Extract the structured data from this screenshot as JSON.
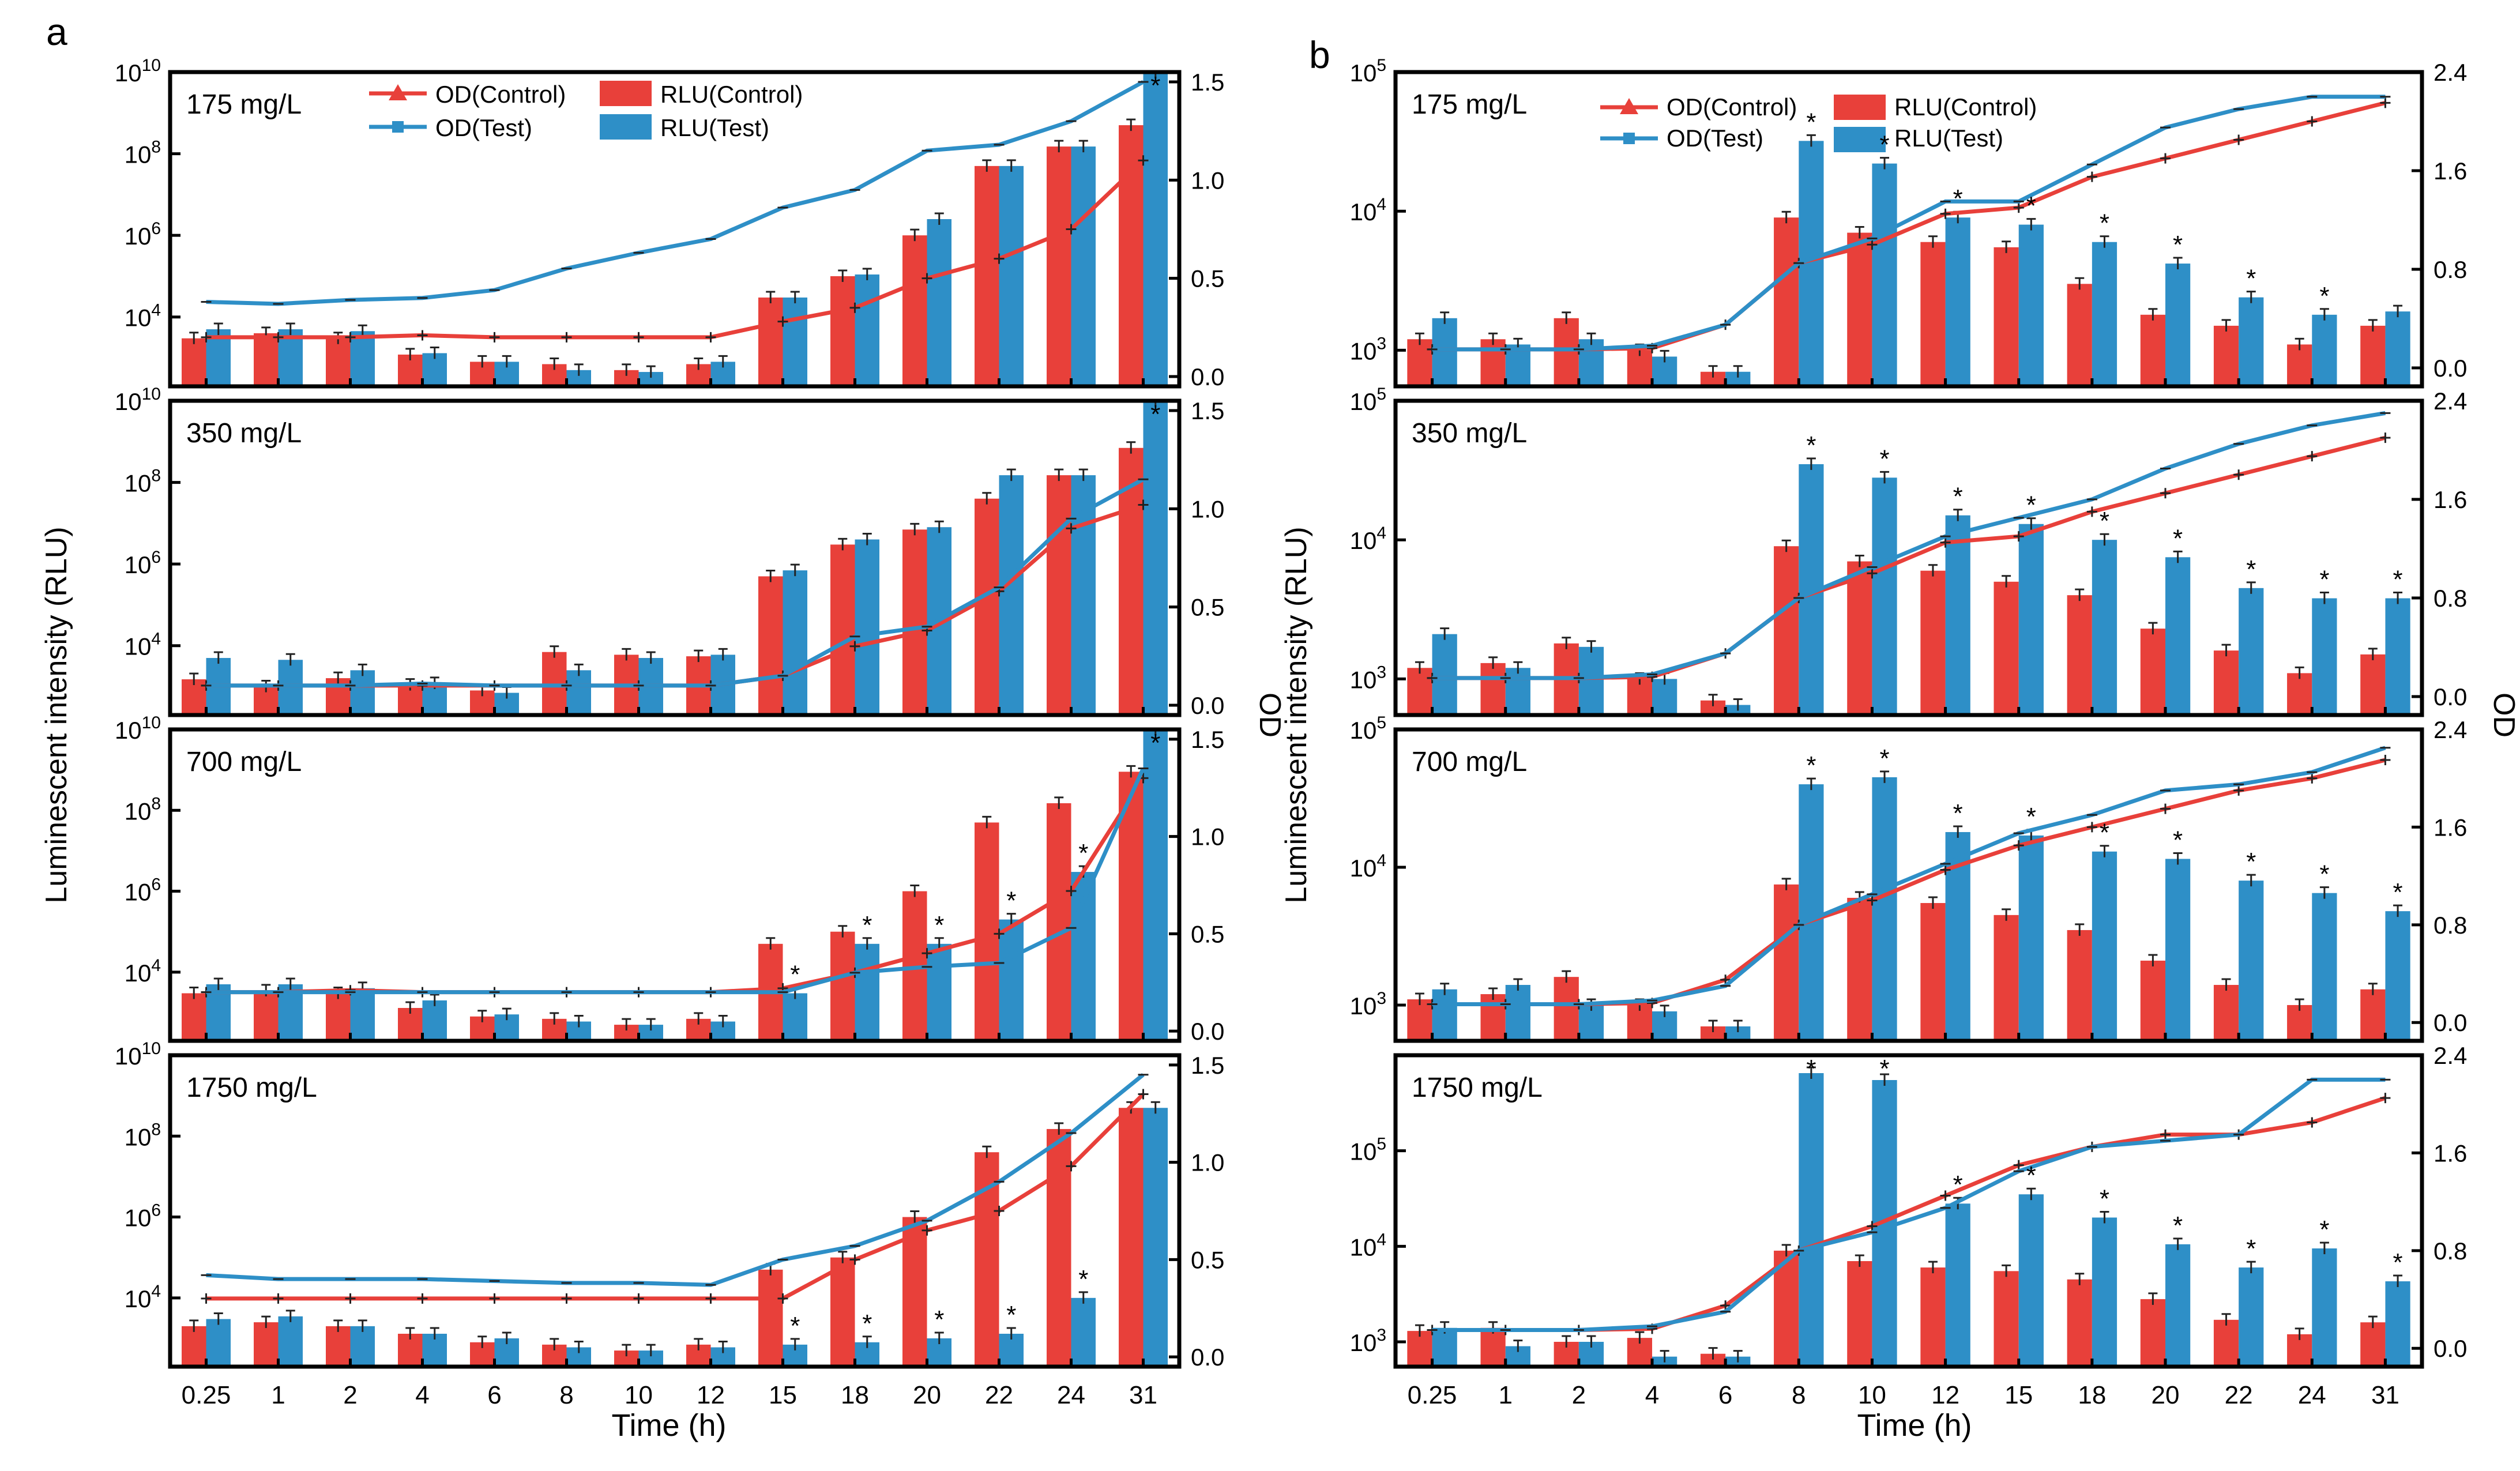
{
  "figure": {
    "panel_labels": [
      "a",
      "b"
    ],
    "x_axis_label": "Time (h)",
    "left_axis_label": "Luminescent intensity (RLU)",
    "right_axis_label": "OD",
    "legend": {
      "od_control": "OD(Control)",
      "od_test": "OD(Test)",
      "rlu_control": "RLU(Control)",
      "rlu_test": "RLU(Test)"
    }
  },
  "colors": {
    "control": "#e8403a",
    "test": "#2e8fc7"
  },
  "chart_data": [
    {
      "type": "bar+line",
      "panel": "a",
      "title": "175 mg/L",
      "categories": [
        "0.25",
        "1",
        "2",
        "4",
        "6",
        "8",
        "10",
        "12",
        "15",
        "18",
        "20",
        "22",
        "24",
        "31"
      ],
      "xlabel": "Time (h)",
      "ylabel": "Luminescent intensity (RLU)",
      "y2label": "OD",
      "rlu_scale": "log",
      "rlu_range": [
        200,
        10000000000
      ],
      "rlu_ticks": [
        10000,
        1000000,
        100000000,
        10000000000
      ],
      "od_range": [
        -0.05,
        1.55
      ],
      "od_ticks": [
        0.0,
        0.5,
        1.0,
        1.5
      ],
      "series": [
        {
          "name": "RLU(Control)",
          "values": [
            3000,
            4000,
            3000,
            1200,
            800,
            700,
            500,
            700,
            30000,
            100000,
            1000000,
            50000000,
            150000000,
            500000000
          ],
          "stars": []
        },
        {
          "name": "RLU(Test)",
          "values": [
            5000,
            5000,
            4500,
            1300,
            800,
            500,
            450,
            800,
            30000,
            110000,
            2500000,
            50000000,
            150000000,
            20000000000
          ],
          "stars": [
            13
          ]
        },
        {
          "name": "OD(Control)",
          "values": [
            0.2,
            0.2,
            0.2,
            0.21,
            0.2,
            0.2,
            0.2,
            0.2,
            0.28,
            0.35,
            0.5,
            0.6,
            0.75,
            1.1
          ],
          "stars": []
        },
        {
          "name": "OD(Test)",
          "values": [
            0.38,
            0.37,
            0.39,
            0.4,
            0.44,
            0.55,
            0.63,
            0.7,
            0.86,
            0.95,
            1.15,
            1.18,
            1.3,
            1.5
          ],
          "stars": []
        }
      ]
    },
    {
      "type": "bar+line",
      "panel": "a",
      "title": "350 mg/L",
      "categories": [
        "0.25",
        "1",
        "2",
        "4",
        "6",
        "8",
        "10",
        "12",
        "15",
        "18",
        "20",
        "22",
        "24",
        "31"
      ],
      "xlabel": "Time (h)",
      "ylabel": "Luminescent intensity (RLU)",
      "y2label": "OD",
      "rlu_scale": "log",
      "rlu_range": [
        200,
        10000000000
      ],
      "rlu_ticks": [
        10000,
        1000000,
        100000000,
        10000000000
      ],
      "od_range": [
        -0.05,
        1.55
      ],
      "od_ticks": [
        0.0,
        0.5,
        1.0,
        1.5
      ],
      "series": [
        {
          "name": "RLU(Control)",
          "values": [
            1500,
            1000,
            1600,
            1100,
            800,
            7000,
            6000,
            5500,
            500000,
            3000000,
            7000000,
            40000000,
            150000000,
            700000000
          ],
          "stars": []
        },
        {
          "name": "RLU(Test)",
          "values": [
            5000,
            4500,
            2500,
            1200,
            700,
            2500,
            5000,
            6000,
            700000,
            4000000,
            8000000,
            150000000,
            150000000,
            20000000000
          ],
          "stars": [
            13
          ]
        },
        {
          "name": "OD(Control)",
          "values": [
            0.1,
            0.1,
            0.1,
            0.1,
            0.1,
            0.1,
            0.1,
            0.1,
            0.15,
            0.3,
            0.38,
            0.58,
            0.9,
            1.02
          ],
          "stars": []
        },
        {
          "name": "OD(Test)",
          "values": [
            0.1,
            0.1,
            0.1,
            0.11,
            0.1,
            0.1,
            0.1,
            0.1,
            0.15,
            0.35,
            0.4,
            0.6,
            0.95,
            1.15
          ],
          "stars": []
        }
      ]
    },
    {
      "type": "bar+line",
      "panel": "a",
      "title": "700 mg/L",
      "categories": [
        "0.25",
        "1",
        "2",
        "4",
        "6",
        "8",
        "10",
        "12",
        "15",
        "18",
        "20",
        "22",
        "24",
        "31"
      ],
      "xlabel": "Time (h)",
      "ylabel": "Luminescent intensity (RLU)",
      "y2label": "OD",
      "rlu_scale": "log",
      "rlu_range": [
        200,
        10000000000
      ],
      "rlu_ticks": [
        10000,
        1000000,
        100000000,
        10000000000
      ],
      "od_range": [
        -0.05,
        1.55
      ],
      "od_ticks": [
        0.0,
        0.5,
        1.0,
        1.5
      ],
      "series": [
        {
          "name": "RLU(Control)",
          "values": [
            3000,
            3500,
            3000,
            1300,
            800,
            700,
            500,
            700,
            50000,
            100000,
            1000000,
            50000000,
            150000000,
            900000000
          ],
          "stars": []
        },
        {
          "name": "RLU(Test)",
          "values": [
            5000,
            5000,
            4000,
            2000,
            900,
            600,
            500,
            600,
            3000,
            50000,
            50000,
            200000,
            3000000,
            20000000000
          ],
          "stars": [
            8,
            9,
            10,
            11,
            12,
            13
          ]
        },
        {
          "name": "OD(Control)",
          "values": [
            0.2,
            0.2,
            0.21,
            0.2,
            0.2,
            0.2,
            0.2,
            0.2,
            0.22,
            0.3,
            0.4,
            0.5,
            0.72,
            1.3
          ],
          "stars": []
        },
        {
          "name": "OD(Test)",
          "values": [
            0.2,
            0.2,
            0.2,
            0.2,
            0.2,
            0.2,
            0.2,
            0.2,
            0.2,
            0.3,
            0.33,
            0.35,
            0.53,
            1.35
          ],
          "stars": []
        }
      ]
    },
    {
      "type": "bar+line",
      "panel": "a",
      "title": "1750 mg/L",
      "categories": [
        "0.25",
        "1",
        "2",
        "4",
        "6",
        "8",
        "10",
        "12",
        "15",
        "18",
        "20",
        "22",
        "24",
        "31"
      ],
      "xlabel": "Time (h)",
      "ylabel": "Luminescent intensity (RLU)",
      "y2label": "OD",
      "rlu_scale": "log",
      "rlu_range": [
        200,
        10000000000
      ],
      "rlu_ticks": [
        10000,
        1000000,
        100000000,
        10000000000
      ],
      "od_range": [
        -0.05,
        1.55
      ],
      "od_ticks": [
        0.0,
        0.5,
        1.0,
        1.5
      ],
      "series": [
        {
          "name": "RLU(Control)",
          "values": [
            2000,
            2500,
            2000,
            1300,
            800,
            700,
            500,
            700,
            50000,
            100000,
            1000000,
            40000000,
            150000000,
            500000000
          ],
          "stars": []
        },
        {
          "name": "RLU(Test)",
          "values": [
            3000,
            3500,
            2000,
            1300,
            1000,
            600,
            500,
            600,
            700,
            800,
            1000,
            1300,
            10000,
            500000000
          ],
          "stars": [
            8,
            9,
            10,
            11,
            12
          ]
        },
        {
          "name": "OD(Control)",
          "values": [
            0.3,
            0.3,
            0.3,
            0.3,
            0.3,
            0.3,
            0.3,
            0.3,
            0.3,
            0.5,
            0.65,
            0.75,
            0.98,
            1.35
          ],
          "stars": []
        },
        {
          "name": "OD(Test)",
          "values": [
            0.42,
            0.4,
            0.4,
            0.4,
            0.39,
            0.38,
            0.38,
            0.37,
            0.5,
            0.57,
            0.7,
            0.9,
            1.15,
            1.45
          ],
          "stars": []
        }
      ]
    },
    {
      "type": "bar+line",
      "panel": "b",
      "title": "175 mg/L",
      "categories": [
        "0.25",
        "1",
        "2",
        "4",
        "6",
        "8",
        "10",
        "12",
        "15",
        "18",
        "20",
        "22",
        "24",
        "31"
      ],
      "xlabel": "Time (h)",
      "ylabel": "Luminescent intensity (RLU)",
      "y2label": "OD",
      "rlu_scale": "log",
      "rlu_range": [
        550,
        100000
      ],
      "rlu_ticks": [
        1000,
        10000,
        100000
      ],
      "od_range": [
        -0.15,
        2.4
      ],
      "od_ticks": [
        0.0,
        0.8,
        1.6,
        2.4
      ],
      "series": [
        {
          "name": "RLU(Control)",
          "values": [
            1200,
            1200,
            1700,
            1000,
            700,
            9000,
            7000,
            6000,
            5500,
            3000,
            1800,
            1500,
            1100,
            1500
          ],
          "stars": []
        },
        {
          "name": "RLU(Test)",
          "values": [
            1700,
            1100,
            1200,
            900,
            700,
            32000,
            22000,
            9000,
            8000,
            6000,
            4200,
            2400,
            1800,
            1900
          ],
          "stars": [
            5,
            6,
            7,
            8,
            9,
            10,
            11,
            12
          ]
        },
        {
          "name": "OD(Control)",
          "values": [
            0.15,
            0.15,
            0.15,
            0.16,
            0.35,
            0.85,
            1.0,
            1.25,
            1.3,
            1.55,
            1.7,
            1.85,
            2.0,
            2.15
          ],
          "stars": []
        },
        {
          "name": "OD(Test)",
          "values": [
            0.15,
            0.15,
            0.15,
            0.18,
            0.35,
            0.85,
            1.05,
            1.35,
            1.35,
            1.65,
            1.95,
            2.1,
            2.2,
            2.2
          ],
          "stars": []
        }
      ]
    },
    {
      "type": "bar+line",
      "panel": "b",
      "title": "350 mg/L",
      "categories": [
        "0.25",
        "1",
        "2",
        "4",
        "6",
        "8",
        "10",
        "12",
        "15",
        "18",
        "20",
        "22",
        "24",
        "31"
      ],
      "xlabel": "Time (h)",
      "ylabel": "Luminescent intensity (RLU)",
      "y2label": "OD",
      "rlu_scale": "log",
      "rlu_range": [
        550,
        100000
      ],
      "rlu_ticks": [
        1000,
        10000,
        100000
      ],
      "od_range": [
        -0.15,
        2.4
      ],
      "od_ticks": [
        0.0,
        0.8,
        1.6,
        2.4
      ],
      "series": [
        {
          "name": "RLU(Control)",
          "values": [
            1200,
            1300,
            1800,
            1000,
            700,
            9000,
            7000,
            6000,
            5000,
            4000,
            2300,
            1600,
            1100,
            1500
          ],
          "stars": []
        },
        {
          "name": "RLU(Test)",
          "values": [
            2100,
            1200,
            1700,
            1000,
            650,
            35000,
            28000,
            15000,
            13000,
            10000,
            7500,
            4500,
            3800,
            3800
          ],
          "stars": [
            5,
            6,
            7,
            8,
            9,
            10,
            11,
            12,
            13
          ]
        },
        {
          "name": "OD(Control)",
          "values": [
            0.15,
            0.15,
            0.15,
            0.16,
            0.35,
            0.8,
            1.0,
            1.25,
            1.3,
            1.5,
            1.65,
            1.8,
            1.95,
            2.1
          ],
          "stars": []
        },
        {
          "name": "OD(Test)",
          "values": [
            0.15,
            0.15,
            0.15,
            0.18,
            0.35,
            0.8,
            1.05,
            1.3,
            1.45,
            1.6,
            1.85,
            2.05,
            2.2,
            2.3
          ],
          "stars": []
        }
      ]
    },
    {
      "type": "bar+line",
      "panel": "b",
      "title": "700 mg/L",
      "categories": [
        "0.25",
        "1",
        "2",
        "4",
        "6",
        "8",
        "10",
        "12",
        "15",
        "18",
        "20",
        "22",
        "24",
        "31"
      ],
      "xlabel": "Time (h)",
      "ylabel": "Luminescent intensity (RLU)",
      "y2label": "OD",
      "rlu_scale": "log",
      "rlu_range": [
        550,
        100000
      ],
      "rlu_ticks": [
        1000,
        10000,
        100000
      ],
      "od_range": [
        -0.15,
        2.4
      ],
      "od_ticks": [
        0.0,
        0.8,
        1.6,
        2.4
      ],
      "series": [
        {
          "name": "RLU(Control)",
          "values": [
            1100,
            1200,
            1600,
            1000,
            700,
            7500,
            6000,
            5500,
            4500,
            3500,
            2100,
            1400,
            1000,
            1300
          ],
          "stars": []
        },
        {
          "name": "RLU(Test)",
          "values": [
            1300,
            1400,
            1000,
            900,
            700,
            40000,
            45000,
            18000,
            17000,
            13000,
            11500,
            8000,
            6500,
            4800
          ],
          "stars": [
            5,
            6,
            7,
            8,
            9,
            10,
            11,
            12,
            13
          ]
        },
        {
          "name": "OD(Control)",
          "values": [
            0.15,
            0.15,
            0.15,
            0.16,
            0.35,
            0.8,
            1.0,
            1.25,
            1.45,
            1.6,
            1.75,
            1.9,
            2.0,
            2.15
          ],
          "stars": []
        },
        {
          "name": "OD(Test)",
          "values": [
            0.15,
            0.15,
            0.15,
            0.18,
            0.3,
            0.8,
            1.05,
            1.3,
            1.55,
            1.7,
            1.9,
            1.95,
            2.05,
            2.25
          ],
          "stars": []
        }
      ]
    },
    {
      "type": "bar+line",
      "panel": "b",
      "title": "1750 mg/L",
      "categories": [
        "0.25",
        "1",
        "2",
        "4",
        "6",
        "8",
        "10",
        "12",
        "15",
        "18",
        "20",
        "22",
        "24",
        "31"
      ],
      "xlabel": "Time (h)",
      "ylabel": "Luminescent intensity (RLU)",
      "y2label": "OD",
      "rlu_scale": "log",
      "rlu_range": [
        550,
        1000000
      ],
      "rlu_ticks": [
        1000,
        10000,
        100000
      ],
      "od_range": [
        -0.15,
        2.4
      ],
      "od_ticks": [
        0.0,
        0.8,
        1.6,
        2.4
      ],
      "series": [
        {
          "name": "RLU(Control)",
          "values": [
            1300,
            1400,
            1000,
            1100,
            750,
            9000,
            7000,
            6000,
            5500,
            4500,
            2800,
            1700,
            1200,
            1600
          ],
          "stars": []
        },
        {
          "name": "RLU(Test)",
          "values": [
            1400,
            900,
            1000,
            700,
            700,
            650000,
            550000,
            28000,
            35000,
            20000,
            10500,
            6000,
            9500,
            4300
          ],
          "stars": [
            5,
            6,
            7,
            8,
            9,
            10,
            11,
            12,
            13
          ]
        },
        {
          "name": "OD(Control)",
          "values": [
            0.15,
            0.15,
            0.15,
            0.16,
            0.35,
            0.8,
            1.0,
            1.25,
            1.5,
            1.65,
            1.75,
            1.75,
            1.85,
            2.05
          ],
          "stars": []
        },
        {
          "name": "OD(Test)",
          "values": [
            0.15,
            0.15,
            0.15,
            0.18,
            0.3,
            0.8,
            0.95,
            1.15,
            1.45,
            1.65,
            1.7,
            1.75,
            2.2,
            2.2
          ],
          "stars": []
        }
      ]
    }
  ]
}
